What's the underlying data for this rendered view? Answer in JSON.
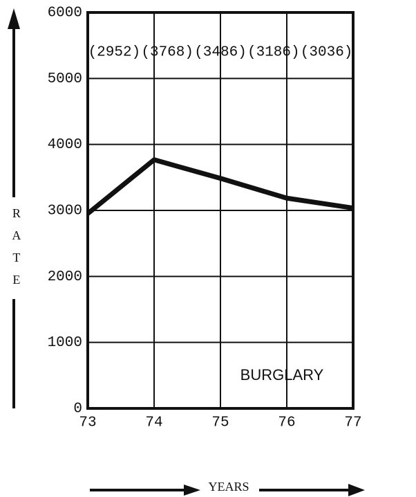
{
  "chart_data": {
    "type": "line",
    "categories": [
      "73",
      "74",
      "75",
      "76",
      "77"
    ],
    "series": [
      {
        "name": "BURGLARY",
        "color": "#111111",
        "values": [
          2952,
          3768,
          3486,
          3186,
          3036
        ],
        "value_labels": [
          "(2952)",
          "(3768)",
          "(3486)",
          "(3186)",
          "(3036)"
        ]
      }
    ],
    "ylabel": "RATE",
    "xlabel": "YEARS",
    "ylim": [
      0,
      6000
    ],
    "yticks": [
      0,
      1000,
      2000,
      3000,
      4000,
      5000,
      6000
    ],
    "grid": true
  }
}
